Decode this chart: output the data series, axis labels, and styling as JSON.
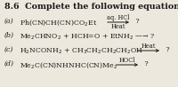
{
  "title": "8.6  Complete the following equations.",
  "bg_color": "#ede8de",
  "text_color": "#1a1a1a",
  "title_fontsize": 6.8,
  "body_fontsize": 5.6,
  "small_fontsize": 4.8,
  "lines": [
    {
      "label": "(a)",
      "body": "Ph(CN)CH(CN)CO$_2$Et",
      "above_arrow": "aq. HCl",
      "below_arrow": "Heat",
      "has_arrow": true,
      "end": " ?"
    },
    {
      "label": "(b)",
      "body": "Me$_2$CHNO$_2$ + HCH=O + EtNH$_2$ —→ ?",
      "above_arrow": "",
      "below_arrow": "",
      "has_arrow": false,
      "end": ""
    },
    {
      "label": "(c)",
      "body": "H$_2$NCONH$_2$ + CH$_3$CH$_2$CH$_2$CH$_2$OH",
      "above_arrow": "Heat",
      "below_arrow": "",
      "has_arrow": true,
      "end": " ?"
    },
    {
      "label": "(d)",
      "body": "Me$_2$C(CN)NHNHC(CN)Me$_2$",
      "above_arrow": "HOCl",
      "below_arrow": "",
      "has_arrow": true,
      "end": " ?"
    }
  ]
}
